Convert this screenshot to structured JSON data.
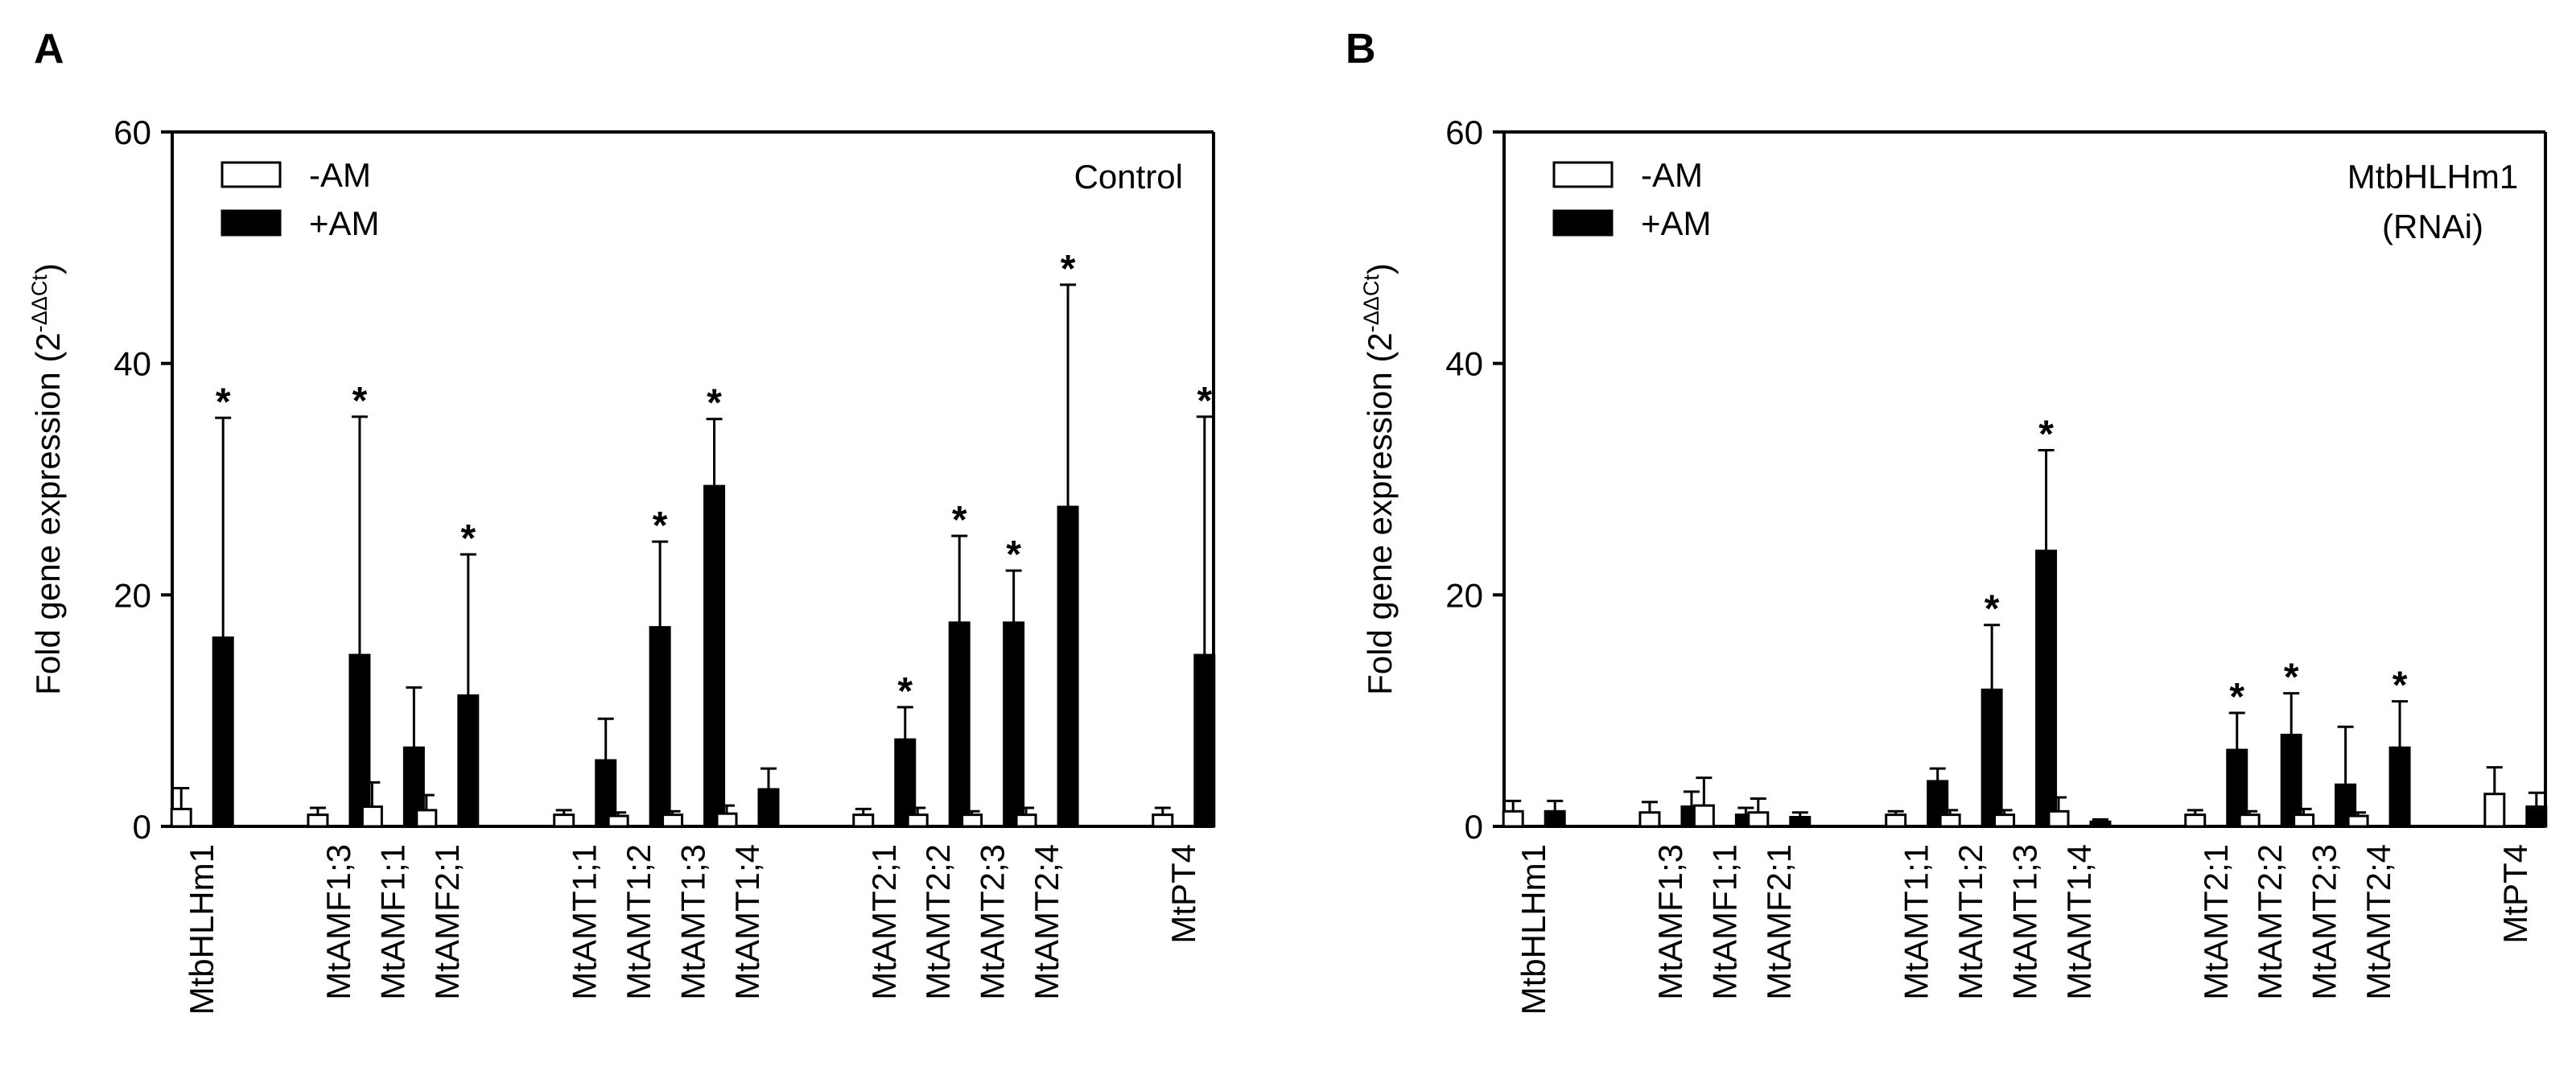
{
  "chart_data": [
    {
      "panel_label": "A",
      "type": "bar",
      "title": "",
      "annotation_lines": [
        "Control"
      ],
      "ylabel_main": "Fold gene expression (2",
      "ylabel_sup": "-ΔΔCt",
      "ylabel_end": ")",
      "ylim": [
        0,
        60
      ],
      "yticks": [
        "0",
        "20",
        "40",
        "60"
      ],
      "categories": [
        "MtbHLHm1",
        "MtAMF1;3",
        "MtAMF1;1",
        "MtAMF2;1",
        "MtAMT1;1",
        "MtAMT1;2",
        "MtAMT1;3",
        "MtAMT1;4",
        "MtAMT2;1",
        "MtAMT2;2",
        "MtAMT2;3",
        "MtAMT2;4",
        "MtPT4"
      ],
      "legend_position": "top-left",
      "series": [
        {
          "name": "-AM",
          "fill": "#ffffff",
          "values": [
            1.5,
            1.0,
            1.7,
            1.4,
            1.0,
            0.9,
            1.0,
            1.1,
            1.0,
            1.0,
            1.0,
            1.0,
            1.0
          ],
          "error": [
            1.8,
            0.6,
            2.1,
            1.3,
            0.4,
            0.3,
            0.3,
            0.7,
            0.5,
            0.6,
            0.3,
            0.6,
            0.6
          ],
          "significant": [
            false,
            false,
            false,
            false,
            false,
            false,
            false,
            false,
            false,
            false,
            false,
            false,
            false
          ]
        },
        {
          "name": "+AM",
          "fill": "#000000",
          "values": [
            16.3,
            14.8,
            6.8,
            11.3,
            5.7,
            17.2,
            29.4,
            3.2,
            7.5,
            17.6,
            17.6,
            27.6,
            14.8
          ],
          "error": [
            19.0,
            20.6,
            5.2,
            12.2,
            3.6,
            7.4,
            5.8,
            1.8,
            2.8,
            7.5,
            4.5,
            19.2,
            20.6
          ],
          "significant": [
            true,
            true,
            false,
            true,
            false,
            true,
            true,
            false,
            true,
            true,
            true,
            true,
            true
          ]
        }
      ],
      "significance_marker": "*"
    },
    {
      "panel_label": "B",
      "type": "bar",
      "title": "",
      "annotation_lines": [
        "MtbHLHm1",
        "(RNAi)"
      ],
      "ylabel_main": "Fold gene expression (2",
      "ylabel_sup": "-ΔΔCt",
      "ylabel_end": ")",
      "ylim": [
        0,
        60
      ],
      "yticks": [
        "0",
        "20",
        "40",
        "60"
      ],
      "categories": [
        "MtbHLHm1",
        "MtAMF1;3",
        "MtAMF1;1",
        "MtAMF2;1",
        "MtAMT1;1",
        "MtAMT1;2",
        "MtAMT1;3",
        "MtAMT1;4",
        "MtAMT2;1",
        "MtAMT2;2",
        "MtAMT2;3",
        "MtAMT2;4",
        "MtPT4"
      ],
      "legend_position": "top-left",
      "series": [
        {
          "name": "-AM",
          "fill": "#ffffff",
          "values": [
            1.3,
            1.2,
            1.8,
            1.2,
            1.0,
            1.0,
            1.0,
            1.3,
            1.0,
            1.0,
            1.0,
            0.9,
            2.8
          ],
          "error": [
            0.9,
            0.9,
            2.4,
            1.2,
            0.3,
            0.4,
            0.4,
            1.2,
            0.4,
            0.3,
            0.5,
            0.3,
            2.3
          ],
          "significant": [
            false,
            false,
            false,
            false,
            false,
            false,
            false,
            false,
            false,
            false,
            false,
            false,
            false
          ]
        },
        {
          "name": "+AM",
          "fill": "#000000",
          "values": [
            1.3,
            1.7,
            1.0,
            0.8,
            3.9,
            11.8,
            23.8,
            0.4,
            6.6,
            7.9,
            3.6,
            6.8,
            1.7
          ],
          "error": [
            0.9,
            1.3,
            0.6,
            0.4,
            1.1,
            5.6,
            8.7,
            0.2,
            3.2,
            3.6,
            5.0,
            4.0,
            1.2
          ],
          "significant": [
            false,
            false,
            false,
            false,
            false,
            true,
            true,
            false,
            true,
            true,
            false,
            true,
            false
          ]
        }
      ],
      "significance_marker": "*"
    }
  ]
}
